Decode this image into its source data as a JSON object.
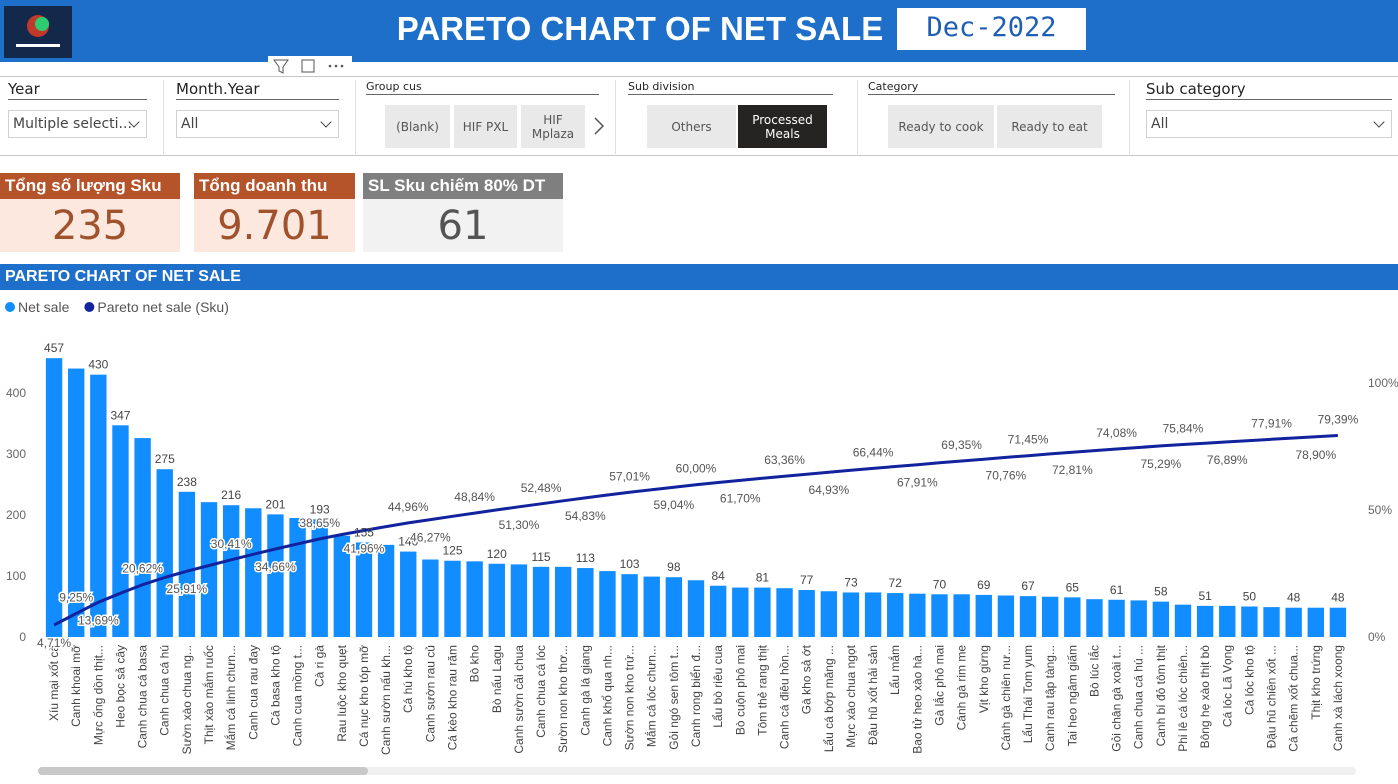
{
  "header": {
    "title": "PARETO CHART OF NET SALE",
    "period": "Dec-2022"
  },
  "slicers": [
    {
      "label": "Year",
      "value": "Multiple selecti..."
    },
    {
      "label": "Month.Year",
      "value": "All"
    },
    {
      "label": "Group cus",
      "options": [
        "(Blank)",
        "HIF PXL",
        "HIF Mplaza"
      ]
    },
    {
      "label": "Sub division",
      "options": [
        "Others",
        "Processed Meals"
      ],
      "selected": 1
    },
    {
      "label": "Category",
      "options": [
        "Ready to cook",
        "Ready to eat"
      ]
    },
    {
      "label": "Sub category",
      "value": "All"
    }
  ],
  "kpis": [
    {
      "label": "Tổng số lượng Sku",
      "value": 235
    },
    {
      "label": "Tổng doanh thu",
      "value": "9.701"
    },
    {
      "label": "SL Sku chiếm 80% DT",
      "value": 61
    }
  ],
  "chart_data": {
    "type": "combo",
    "title": "PARETO CHART OF NET SALE",
    "categories": [
      "Xíu mại xốt cà",
      "Canh khoai mỡ",
      "Mực ống dồn thịt...",
      "Heo bọc sả cây",
      "Canh chua cá basa",
      "Canh chua cá hú",
      "Sườn xào chua ng...",
      "Thịt xào mắm ruốc",
      "Mắm cá linh chưn...",
      "Canh cua rau đay",
      "Cá basa kho tộ",
      "Canh cua mồng t...",
      "Cà ri gà",
      "Rau luộc kho quẹt",
      "Cá nục kho tóp mỡ",
      "Canh sườn nấu kh...",
      "Cá hú kho tộ",
      "Canh sườn rau củ",
      "Cá kèo kho rau răm",
      "Bò kho",
      "Bò nấu Lagu",
      "Canh sườn cải chua",
      "Canh chua cá lóc",
      "Sườn non kho thơ...",
      "Canh gà lá giang",
      "Canh khổ qua nh...",
      "Sườn non kho trứ...",
      "Mắm cá lóc chưn...",
      "Gỏi ngó sen tôm t...",
      "Canh rong biển đ...",
      "Lẩu bò riêu cua",
      "Bò cuộn phô mai",
      "Tôm thẻ rang thịt",
      "Canh cá điêu hồn...",
      "Gà kho sả ớt",
      "Lẩu cá bớp măng ...",
      "Mực xào chua ngọt",
      "Đậu hũ xốt hải sản",
      "Lẩu mắm",
      "Bao tử heo xào hà...",
      "Gà lắc phô mai",
      "Cánh gà rim me",
      "Vịt kho gừng",
      "Cánh gà chiên nư...",
      "Lẩu Thái Tom yum",
      "Canh rau tập tàng...",
      "Tai heo ngâm giấm",
      "Bò lúc lắc",
      "Gỏi chân gà xoài t...",
      "Canh chua cá hú ...",
      "Canh bí đỏ tôm thịt",
      "Phi lê cá lóc chiên...",
      "Bông hẹ xào thịt bò",
      "Cá lóc Lã Vọng",
      "Cá lóc kho tộ",
      "Đậu hũ chiên xốt ...",
      "Cá chẽm xốt chua...",
      "Thịt kho trứng",
      "Canh xà lách xoong"
    ],
    "series": [
      {
        "name": "Net sale",
        "type": "bar",
        "color": "#118dff",
        "values": [
          457,
          440,
          430,
          347,
          326,
          275,
          238,
          221,
          216,
          211,
          201,
          195,
          193,
          166,
          155,
          151,
          140,
          127,
          125,
          124,
          120,
          119,
          115,
          115,
          113,
          108,
          103,
          99,
          98,
          93,
          84,
          81,
          81,
          80,
          77,
          75,
          73,
          73,
          72,
          71,
          70,
          70,
          69,
          68,
          67,
          66,
          65,
          62,
          61,
          60,
          58,
          53,
          51,
          51,
          50,
          49,
          48,
          48,
          48
        ],
        "value_labels": [
          "457",
          null,
          "430",
          "347",
          null,
          "275",
          "238",
          null,
          "216",
          null,
          "201",
          null,
          "193",
          null,
          "155",
          null,
          "140",
          null,
          "125",
          null,
          "120",
          null,
          "115",
          null,
          "113",
          null,
          "103",
          null,
          "98",
          null,
          "84",
          null,
          "81",
          null,
          "77",
          null,
          "73",
          null,
          "72",
          null,
          "70",
          null,
          "69",
          null,
          "67",
          null,
          "65",
          null,
          "61",
          null,
          "58",
          null,
          "51",
          null,
          "50",
          null,
          "48",
          null,
          "48"
        ]
      },
      {
        "name": "Pareto net sale (Sku)",
        "type": "line",
        "axis": "y2",
        "color": "#12239e",
        "values": [
          4.71,
          9.25,
          13.69,
          17.26,
          20.62,
          23.45,
          25.91,
          28.18,
          30.41,
          32.58,
          34.66,
          36.67,
          38.65,
          40.37,
          41.96,
          43.52,
          44.96,
          46.27,
          47.56,
          48.84,
          50.08,
          51.3,
          52.48,
          53.67,
          54.83,
          55.95,
          57.01,
          58.04,
          59.04,
          60,
          60.87,
          61.7,
          62.54,
          63.36,
          64.16,
          64.93,
          65.68,
          66.44,
          67.18,
          67.91,
          68.63,
          69.35,
          70.06,
          70.76,
          71.45,
          72.14,
          72.81,
          73.45,
          74.08,
          74.69,
          75.29,
          75.84,
          76.36,
          76.89,
          77.4,
          77.91,
          78.4,
          78.9,
          79.39
        ],
        "value_labels": [
          "4,71%",
          "9,25%",
          "13,69%",
          null,
          "20,62%",
          null,
          "25,91%",
          null,
          "30,41%",
          null,
          "34,66%",
          null,
          "38,65%",
          null,
          "41,96%",
          null,
          "44,96%",
          "46,27%",
          null,
          "48,84%",
          null,
          "51,30%",
          "52,48%",
          null,
          "54,83%",
          null,
          "57,01%",
          null,
          "59,04%",
          "60,00%",
          null,
          "61,70%",
          null,
          "63,36%",
          null,
          "64,93%",
          null,
          "66,44%",
          null,
          "67,91%",
          null,
          "69,35%",
          null,
          "70,76%",
          "71,45%",
          null,
          "72,81%",
          null,
          "74,08%",
          null,
          "75,29%",
          "75,84%",
          null,
          "76,89%",
          null,
          "77,91%",
          null,
          "78,90%",
          "79,39%"
        ]
      }
    ],
    "ylim": [
      0,
      495
    ],
    "yticks": [
      0,
      100,
      200,
      300,
      400
    ],
    "y2lim": [
      0,
      119
    ],
    "y2ticks": [
      {
        "value": 0,
        "label": "0%"
      },
      {
        "value": 50,
        "label": "50%"
      },
      {
        "value": 100,
        "label": "100%"
      }
    ],
    "grid": false,
    "legend": "top-left"
  }
}
